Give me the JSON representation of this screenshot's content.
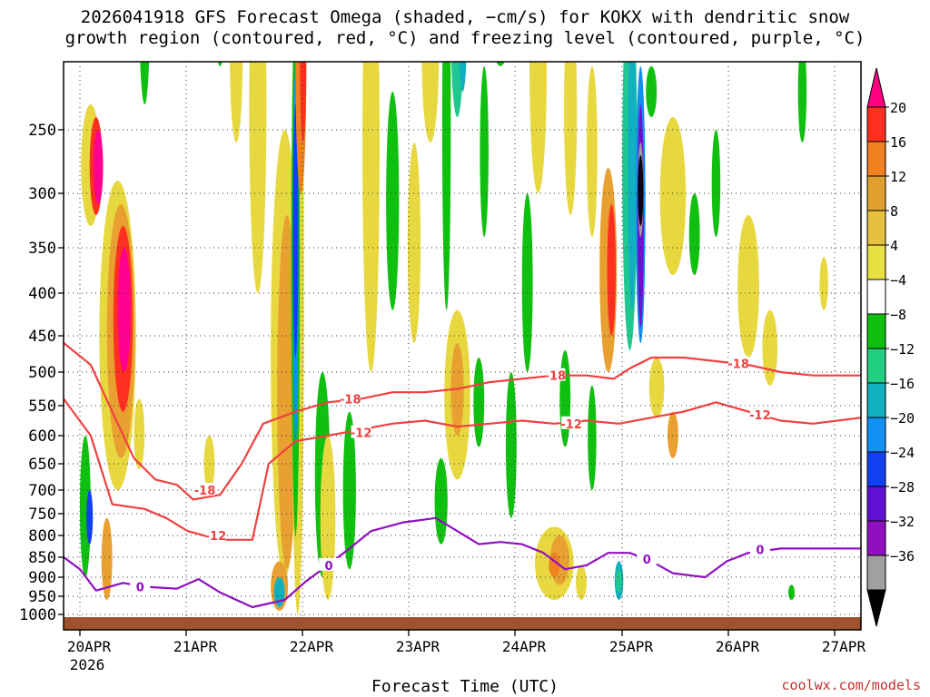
{
  "chart_data": {
    "type": "heatmap",
    "title_line1": "2026041918 GFS Forecast Omega (shaded, −cm/s) for KOKX with dendritic snow",
    "title_line2": "growth region (contoured, red, °C) and freezing level (contoured, purple, °C)",
    "xlabel": "Forecast Time (UTC)",
    "ylabel": "",
    "x_ticks": [
      "20APR",
      "21APR",
      "22APR",
      "23APR",
      "24APR",
      "25APR",
      "26APR",
      "27APR"
    ],
    "x_year": "2026",
    "y_ticks": [
      250,
      300,
      350,
      400,
      450,
      500,
      550,
      600,
      650,
      700,
      750,
      800,
      850,
      900,
      950,
      1000
    ],
    "colorbar_labels": [
      "20",
      "16",
      "12",
      "8",
      "4",
      "−4",
      "−8",
      "−12",
      "−16",
      "−20",
      "−24",
      "−28",
      "−32",
      "−36"
    ],
    "colorbar_colors": [
      "#ff0080",
      "#ff3020",
      "#f08020",
      "#e0a030",
      "#e8c040",
      "#e8e040",
      "#ffffff",
      "#10c010",
      "#20d080",
      "#10b0c0",
      "#1090f0",
      "#1040f0",
      "#6010d0",
      "#9010c0",
      "#a0a0a0",
      "#000000"
    ],
    "contour_labels": [
      {
        "level": "-18",
        "series": "dendritic"
      },
      {
        "level": "-12",
        "series": "dendritic"
      },
      {
        "level": "0",
        "series": "freezing"
      }
    ],
    "credit": "coolwx.com/models"
  }
}
